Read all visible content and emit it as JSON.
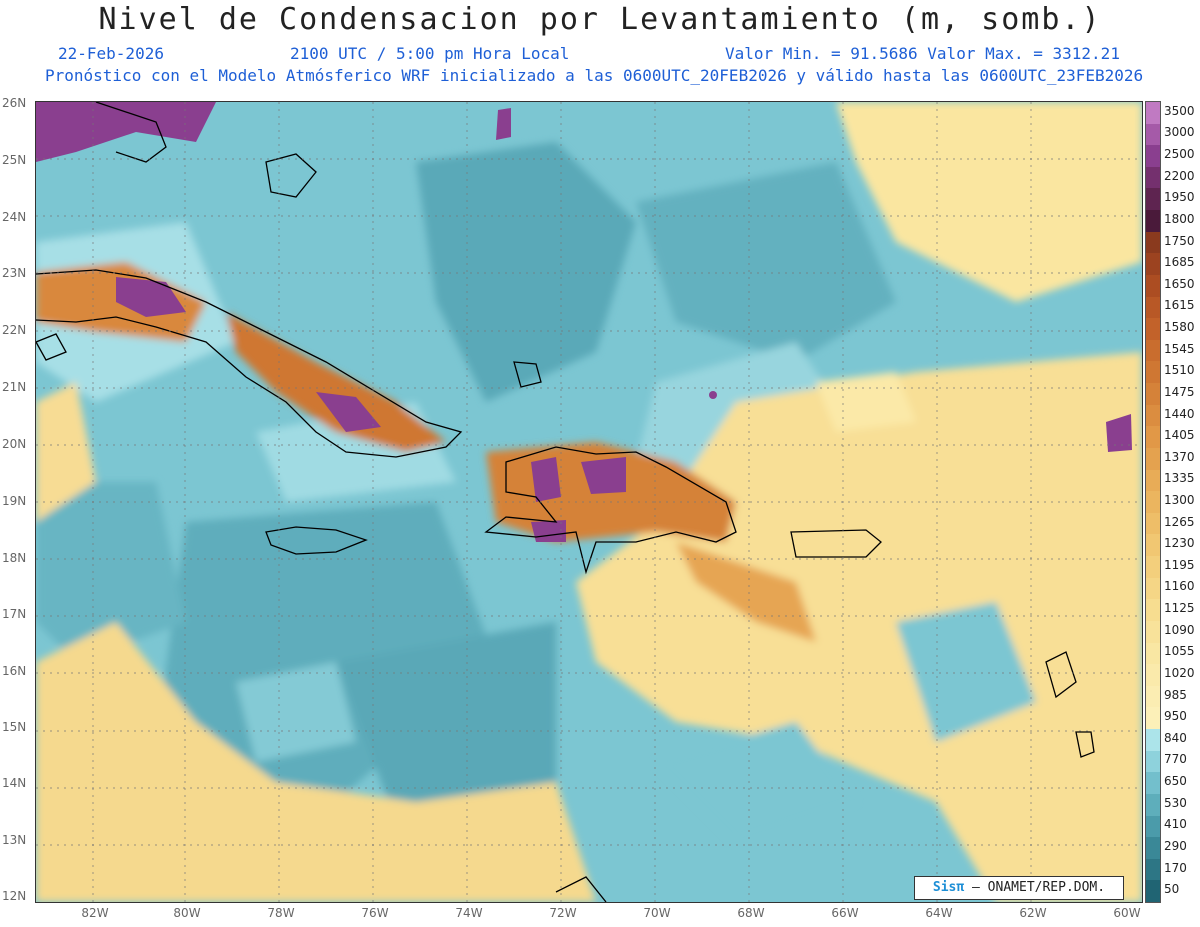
{
  "header": {
    "title": "Nivel de Condensacion por Levantamiento (m, somb.)",
    "date": "22-Feb-2026",
    "time": "2100 UTC / 5:00 pm Hora Local",
    "min_max": "Valor Min. = 91.5686  Valor Max. = 3312.21",
    "model_line": "Pronóstico con el Modelo Atmósferico WRF inicializado a las 0600UTC_20FEB2026 y válido hasta las  0600UTC_23FEB2026"
  },
  "axes": {
    "lat_labels": [
      "26N",
      "25N",
      "24N",
      "23N",
      "22N",
      "21N",
      "20N",
      "19N",
      "18N",
      "17N",
      "16N",
      "15N",
      "14N",
      "13N",
      "12N"
    ],
    "lon_labels": [
      "82W",
      "80W",
      "78W",
      "76W",
      "74W",
      "72W",
      "70W",
      "68W",
      "66W",
      "64W",
      "62W",
      "60W"
    ]
  },
  "colorbar": {
    "levels": [
      "3500",
      "3000",
      "2500",
      "2200",
      "1950",
      "1800",
      "1750",
      "1685",
      "1650",
      "1615",
      "1580",
      "1545",
      "1510",
      "1475",
      "1440",
      "1405",
      "1370",
      "1335",
      "1300",
      "1265",
      "1230",
      "1195",
      "1160",
      "1125",
      "1090",
      "1055",
      "1020",
      "985",
      "950",
      "840",
      "770",
      "650",
      "530",
      "410",
      "290",
      "170",
      "50"
    ],
    "colors": [
      "#c07ac2",
      "#a55aa8",
      "#8a3f8f",
      "#74306e",
      "#5e2450",
      "#4a1a3a",
      "#8a3a1e",
      "#9c4320",
      "#ac4d22",
      "#b85826",
      "#c2622a",
      "#c96d2e",
      "#cf7733",
      "#d58239",
      "#db8d40",
      "#e19847",
      "#e4a24f",
      "#e8ac57",
      "#ebb55f",
      "#eebe68",
      "#f1c772",
      "#f3cf7c",
      "#f5d686",
      "#f7dd90",
      "#f8e29a",
      "#f9e7a3",
      "#faeaab",
      "#fbedb2",
      "#fcf0b8",
      "#ace4ea",
      "#8ed2dc",
      "#73bfcc",
      "#5eaebb",
      "#4b9baa",
      "#3a8897",
      "#2d7685",
      "#206473"
    ]
  },
  "credit": {
    "logo": "Sisπ",
    "text": " – ONAMET/REP.DOM."
  }
}
